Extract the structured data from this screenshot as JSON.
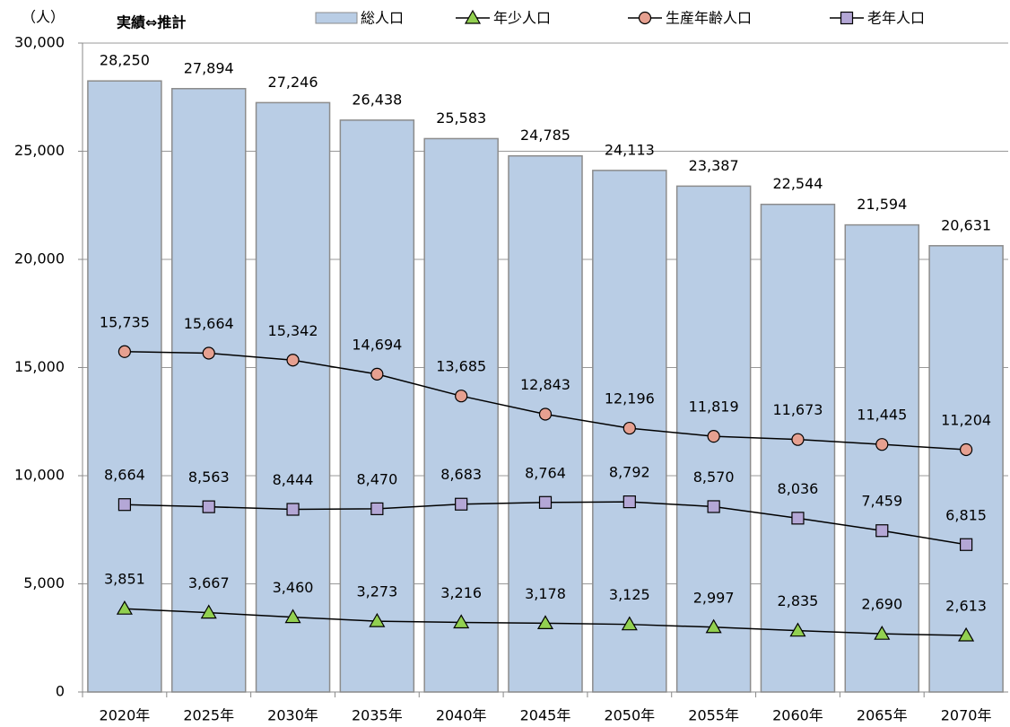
{
  "chart_data": {
    "type": "combo",
    "unit_label": "（人）",
    "annotation": "実績⇔推計",
    "categories": [
      "2020年",
      "2025年",
      "2030年",
      "2035年",
      "2040年",
      "2045年",
      "2050年",
      "2055年",
      "2060年",
      "2065年",
      "2070年"
    ],
    "ylim": [
      0,
      30000
    ],
    "yticks": [
      0,
      {
        "value": 5000,
        "label": "5,000"
      },
      {
        "value": 10000,
        "label": "10,000"
      },
      {
        "value": 15000,
        "label": "15,000"
      },
      {
        "value": 20000,
        "label": "20,000"
      },
      {
        "value": 25000,
        "label": "25,000"
      },
      {
        "value": 30000,
        "label": "30,000"
      }
    ],
    "grid": true,
    "legend": "top",
    "series": [
      {
        "name": "総人口",
        "type": "bar",
        "color": "#b9cde5",
        "values": [
          28250,
          27894,
          27246,
          26438,
          25583,
          24785,
          24113,
          23387,
          22544,
          21594,
          20631
        ],
        "value_labels": [
          "28,250",
          "27,894",
          "27,246",
          "26,438",
          "25,583",
          "24,785",
          "24,113",
          "23,387",
          "22,544",
          "21,594",
          "20,631"
        ]
      },
      {
        "name": "年少人口",
        "type": "line",
        "marker": "triangle",
        "color": "#92d050",
        "values": [
          3851,
          3667,
          3460,
          3273,
          3216,
          3178,
          3125,
          2997,
          2835,
          2690,
          2613
        ],
        "value_labels": [
          "3,851",
          "3,667",
          "3,460",
          "3,273",
          "3,216",
          "3,178",
          "3,125",
          "2,997",
          "2,835",
          "2,690",
          "2,613"
        ]
      },
      {
        "name": "生産年齢人口",
        "type": "line",
        "marker": "circle",
        "color": "#e6a090",
        "values": [
          15735,
          15664,
          15342,
          14694,
          13685,
          12843,
          12196,
          11819,
          11673,
          11445,
          11204
        ],
        "value_labels": [
          "15,735",
          "15,664",
          "15,342",
          "14,694",
          "13,685",
          "12,843",
          "12,196",
          "11,819",
          "11,673",
          "11,445",
          "11,204"
        ]
      },
      {
        "name": "老年人口",
        "type": "line",
        "marker": "square",
        "color": "#b4a7d6",
        "values": [
          8664,
          8563,
          8444,
          8470,
          8683,
          8764,
          8792,
          8570,
          8036,
          7459,
          6815
        ],
        "value_labels": [
          "8,664",
          "8,563",
          "8,444",
          "8,470",
          "8,683",
          "8,764",
          "8,792",
          "8,570",
          "8,036",
          "7,459",
          "6,815"
        ]
      }
    ]
  }
}
